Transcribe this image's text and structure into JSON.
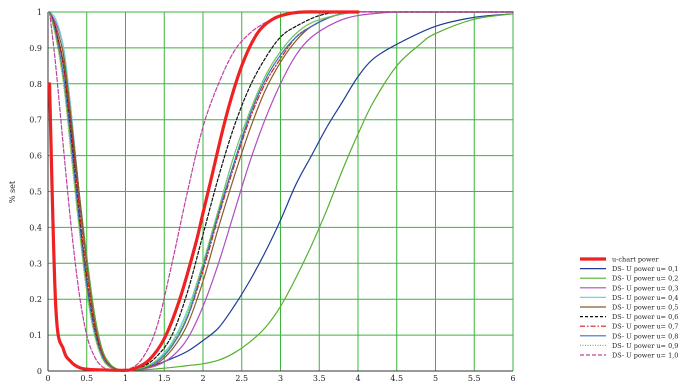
{
  "chart_data": {
    "type": "line",
    "ylabel": "% set",
    "xlim": [
      0,
      6
    ],
    "ylim": [
      0,
      1
    ],
    "xticks": [
      "0",
      "0.5",
      "1",
      "1.5",
      "2",
      "2.5",
      "3",
      "3.5",
      "4",
      "4.5",
      "5",
      "5.5",
      "6"
    ],
    "yticks": [
      "0",
      "0.1",
      "0.2",
      "0.3",
      "0.4",
      "0.5",
      "0.6",
      "0.7",
      "0.8",
      "0.9",
      "1"
    ],
    "grid": true,
    "legend_position": "bottom-right",
    "series": [
      {
        "name": "u-chart power",
        "color": "#ee2222",
        "width": 3.2,
        "dash": "",
        "x": [
          0.02,
          0.1,
          0.2,
          0.3,
          0.4,
          0.5,
          0.7,
          0.9,
          1,
          1.1,
          1.3,
          1.5,
          1.7,
          1.9,
          2.0,
          2.1,
          2.3,
          2.5,
          2.7,
          2.9,
          3.1,
          3.3,
          3.6,
          4.0
        ],
        "y": [
          0.8,
          0.18,
          0.06,
          0.025,
          0.01,
          0.005,
          0.003,
          0.002,
          0.002,
          0.005,
          0.03,
          0.09,
          0.2,
          0.35,
          0.44,
          0.53,
          0.71,
          0.85,
          0.94,
          0.98,
          0.995,
          1,
          1,
          1
        ]
      },
      {
        "name": "DS- U power u= 0,1",
        "color": "#1f3c99",
        "width": 1.2,
        "dash": "",
        "x": [
          0.02,
          0.1,
          0.2,
          0.3,
          0.4,
          0.5,
          0.6,
          0.7,
          0.8,
          0.9,
          1,
          1.1,
          1.2,
          1.4,
          1.6,
          1.8,
          2.0,
          2.2,
          2.4,
          2.6,
          2.8,
          3.0,
          3.2,
          3.4,
          3.6,
          3.8,
          4.0,
          4.2,
          4.5,
          5,
          5.5,
          6
        ],
        "y": [
          1,
          0.95,
          0.85,
          0.68,
          0.48,
          0.3,
          0.14,
          0.05,
          0.015,
          0.004,
          0.002,
          0.003,
          0.006,
          0.018,
          0.035,
          0.055,
          0.085,
          0.12,
          0.18,
          0.25,
          0.33,
          0.42,
          0.52,
          0.6,
          0.68,
          0.75,
          0.82,
          0.87,
          0.91,
          0.96,
          0.985,
          0.995
        ]
      },
      {
        "name": "DS- U power u= 0,2",
        "color": "#55b030",
        "width": 1.2,
        "dash": "",
        "x": [
          0.02,
          0.1,
          0.2,
          0.3,
          0.4,
          0.5,
          0.6,
          0.7,
          0.8,
          0.9,
          1,
          1.2,
          1.4,
          1.6,
          1.8,
          2.0,
          2.2,
          2.4,
          2.6,
          2.8,
          3.0,
          3.2,
          3.4,
          3.6,
          3.8,
          4.0,
          4.2,
          4.5,
          4.8,
          5,
          5.5,
          6
        ],
        "y": [
          1,
          0.94,
          0.86,
          0.7,
          0.5,
          0.32,
          0.16,
          0.06,
          0.02,
          0.005,
          0.002,
          0.003,
          0.006,
          0.01,
          0.015,
          0.02,
          0.03,
          0.05,
          0.08,
          0.12,
          0.18,
          0.26,
          0.35,
          0.45,
          0.56,
          0.66,
          0.75,
          0.85,
          0.91,
          0.94,
          0.98,
          0.995
        ]
      },
      {
        "name": "DS- U power u= 0,3",
        "color": "#b04cc4",
        "width": 1.2,
        "dash": "",
        "x": [
          0.02,
          0.1,
          0.2,
          0.3,
          0.4,
          0.5,
          0.6,
          0.7,
          0.8,
          0.9,
          1,
          1.2,
          1.4,
          1.6,
          1.8,
          2.0,
          2.2,
          2.4,
          2.6,
          2.8,
          3.0,
          3.2,
          3.4,
          3.7,
          4.0,
          4.5,
          5,
          6
        ],
        "y": [
          1,
          0.97,
          0.9,
          0.72,
          0.5,
          0.3,
          0.14,
          0.05,
          0.015,
          0.004,
          0.002,
          0.005,
          0.015,
          0.04,
          0.09,
          0.18,
          0.3,
          0.44,
          0.58,
          0.7,
          0.8,
          0.88,
          0.93,
          0.97,
          0.99,
          1,
          1,
          1
        ]
      },
      {
        "name": "DS- U power u= 0,4",
        "color": "#66d9d0",
        "width": 1.2,
        "dash": "",
        "x": [
          0.02,
          0.1,
          0.2,
          0.3,
          0.4,
          0.5,
          0.6,
          0.7,
          0.8,
          0.9,
          1,
          1.2,
          1.4,
          1.6,
          1.8,
          2.0,
          2.2,
          2.4,
          2.6,
          2.8,
          3.0,
          3.2,
          3.4,
          3.7,
          4.0,
          4.5,
          5,
          6
        ],
        "y": [
          1,
          0.98,
          0.9,
          0.72,
          0.5,
          0.3,
          0.14,
          0.05,
          0.015,
          0.004,
          0.002,
          0.008,
          0.03,
          0.08,
          0.17,
          0.3,
          0.45,
          0.6,
          0.72,
          0.82,
          0.89,
          0.94,
          0.97,
          0.99,
          1,
          1,
          1,
          1
        ]
      },
      {
        "name": "DS- U power u= 0,5",
        "color": "#8a5a2b",
        "width": 1.2,
        "dash": "",
        "x": [
          0.02,
          0.1,
          0.2,
          0.3,
          0.4,
          0.5,
          0.6,
          0.7,
          0.8,
          0.9,
          1,
          1.2,
          1.4,
          1.6,
          1.8,
          2.0,
          2.2,
          2.4,
          2.6,
          2.8,
          3.0,
          3.2,
          3.4,
          3.7,
          4.0,
          4.5,
          5,
          6
        ],
        "y": [
          1,
          0.96,
          0.88,
          0.7,
          0.5,
          0.3,
          0.14,
          0.05,
          0.015,
          0.004,
          0.002,
          0.006,
          0.02,
          0.06,
          0.13,
          0.25,
          0.4,
          0.54,
          0.67,
          0.78,
          0.86,
          0.92,
          0.96,
          0.99,
          1,
          1,
          1,
          1
        ]
      },
      {
        "name": "DS- U power u= 0,6",
        "color": "#111111",
        "width": 1.2,
        "dash": "3,2",
        "x": [
          0.02,
          0.1,
          0.2,
          0.3,
          0.4,
          0.5,
          0.6,
          0.7,
          0.8,
          0.9,
          1,
          1.2,
          1.4,
          1.6,
          1.8,
          2.0,
          2.2,
          2.4,
          2.6,
          2.8,
          3.0,
          3.2,
          3.5,
          3.8,
          4.2,
          4.5,
          5,
          6
        ],
        "y": [
          1,
          0.95,
          0.85,
          0.65,
          0.44,
          0.25,
          0.12,
          0.04,
          0.012,
          0.004,
          0.002,
          0.01,
          0.04,
          0.1,
          0.22,
          0.38,
          0.54,
          0.68,
          0.79,
          0.87,
          0.93,
          0.96,
          0.99,
          1,
          1,
          1,
          1,
          1
        ]
      },
      {
        "name": "DS- U power u= 0,7",
        "color": "#d42020",
        "width": 1.2,
        "dash": "5,2,1.5,2",
        "x": [
          0.02,
          0.1,
          0.2,
          0.3,
          0.4,
          0.5,
          0.6,
          0.7,
          0.8,
          0.9,
          1,
          1.2,
          1.4,
          1.6,
          1.8,
          2.0,
          2.2,
          2.4,
          2.6,
          2.8,
          3.0,
          3.2,
          3.4,
          3.7,
          4.0,
          4.5,
          5,
          6
        ],
        "y": [
          1,
          0.95,
          0.85,
          0.67,
          0.46,
          0.27,
          0.13,
          0.05,
          0.015,
          0.004,
          0.002,
          0.007,
          0.025,
          0.07,
          0.15,
          0.28,
          0.43,
          0.57,
          0.7,
          0.8,
          0.87,
          0.93,
          0.96,
          0.99,
          1,
          1,
          1,
          1
        ]
      },
      {
        "name": "DS- U power u= 0,8",
        "color": "#3a6fc0",
        "width": 1.2,
        "dash": "",
        "x": [
          0.02,
          0.1,
          0.2,
          0.3,
          0.4,
          0.5,
          0.6,
          0.7,
          0.8,
          0.9,
          1,
          1.2,
          1.4,
          1.6,
          1.8,
          2.0,
          2.2,
          2.4,
          2.6,
          2.8,
          3.0,
          3.2,
          3.4,
          3.7,
          4.0,
          4.5,
          5,
          6
        ],
        "y": [
          1,
          0.94,
          0.82,
          0.63,
          0.42,
          0.24,
          0.11,
          0.04,
          0.012,
          0.004,
          0.002,
          0.007,
          0.025,
          0.07,
          0.15,
          0.29,
          0.44,
          0.58,
          0.71,
          0.81,
          0.88,
          0.93,
          0.96,
          0.99,
          1,
          1,
          1,
          1
        ]
      },
      {
        "name": "DS- U power u= 0,9",
        "color": "#7cc04a",
        "width": 1.2,
        "dash": "1,1.5",
        "x": [
          0.02,
          0.1,
          0.2,
          0.3,
          0.4,
          0.5,
          0.6,
          0.7,
          0.8,
          0.9,
          1,
          1.2,
          1.4,
          1.6,
          1.8,
          2.0,
          2.2,
          2.4,
          2.6,
          2.8,
          3.0,
          3.2,
          3.4,
          3.7,
          4.0,
          4.5,
          5,
          6
        ],
        "y": [
          1,
          0.93,
          0.8,
          0.6,
          0.4,
          0.22,
          0.1,
          0.035,
          0.01,
          0.004,
          0.002,
          0.008,
          0.028,
          0.075,
          0.16,
          0.3,
          0.45,
          0.6,
          0.72,
          0.82,
          0.89,
          0.94,
          0.97,
          0.99,
          1,
          1,
          1,
          1
        ]
      },
      {
        "name": "DS- U power u= 1,0",
        "color": "#c040a0",
        "width": 1.2,
        "dash": "4,2",
        "x": [
          0.02,
          0.1,
          0.2,
          0.3,
          0.4,
          0.5,
          0.6,
          0.7,
          0.8,
          0.9,
          1,
          1.2,
          1.4,
          1.6,
          1.8,
          2.0,
          2.2,
          2.4,
          2.6,
          2.8,
          3.0,
          3.3,
          3.6,
          4.0,
          4.5,
          5,
          6
        ],
        "y": [
          1,
          0.85,
          0.62,
          0.4,
          0.22,
          0.1,
          0.04,
          0.012,
          0.004,
          0.002,
          0.002,
          0.03,
          0.12,
          0.3,
          0.5,
          0.68,
          0.8,
          0.89,
          0.94,
          0.97,
          0.99,
          1,
          1,
          1,
          1,
          1,
          1
        ]
      }
    ]
  }
}
